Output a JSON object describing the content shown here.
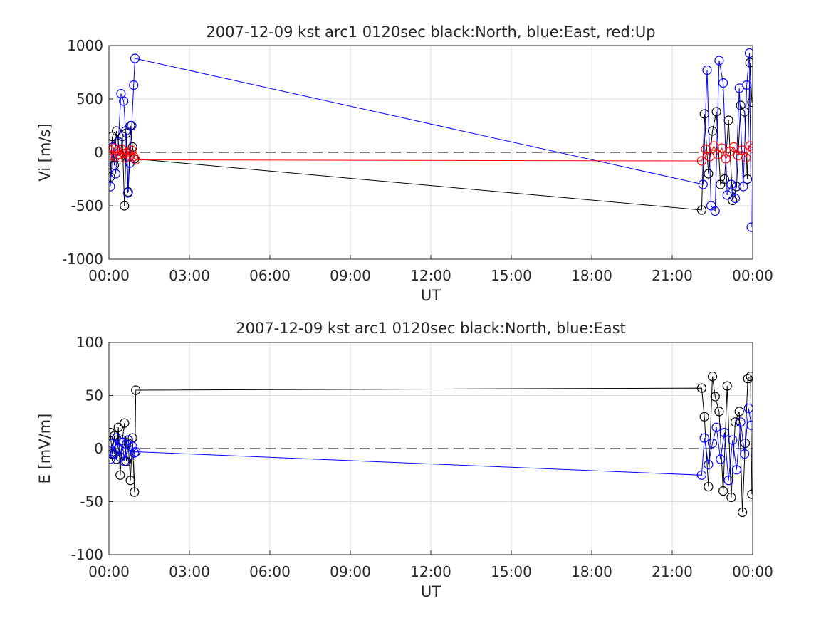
{
  "chart_data": [
    {
      "type": "scatter",
      "title": "2007-12-09 kst arc1 0120sec black:North, blue:East, red:Up",
      "xlabel": "UT",
      "ylabel": "Vi [m/s]",
      "xlim_hours": [
        0,
        24
      ],
      "ylim": [
        -1000,
        1000
      ],
      "x_ticks": [
        "00:00",
        "03:00",
        "06:00",
        "09:00",
        "12:00",
        "15:00",
        "18:00",
        "21:00",
        "00:00"
      ],
      "y_ticks": [
        "-1000",
        "-500",
        "0",
        "500",
        "1000"
      ],
      "grid": true,
      "zero_line": "dashed",
      "series": [
        {
          "name": "North",
          "color": "#000000",
          "x_hours": [
            0.05,
            0.12,
            0.2,
            0.28,
            0.35,
            0.42,
            0.5,
            0.58,
            0.65,
            0.72,
            0.8,
            0.88,
            0.95,
            22.1,
            22.2,
            22.35,
            22.5,
            22.65,
            22.8,
            22.95,
            23.1,
            23.25,
            23.4,
            23.55,
            23.7,
            23.8,
            23.9,
            23.97
          ],
          "values": [
            -230,
            150,
            -120,
            200,
            100,
            -50,
            150,
            -500,
            180,
            -370,
            250,
            50,
            -60,
            -540,
            360,
            -200,
            200,
            380,
            -300,
            -250,
            300,
            -450,
            -320,
            440,
            380,
            -250,
            840,
            470
          ]
        },
        {
          "name": "East",
          "color": "#0000ff",
          "x_hours": [
            0.05,
            0.15,
            0.25,
            0.35,
            0.45,
            0.55,
            0.62,
            0.7,
            0.78,
            0.85,
            0.92,
            0.97,
            22.15,
            22.3,
            22.45,
            22.6,
            22.75,
            22.9,
            23.05,
            23.2,
            23.35,
            23.5,
            23.65,
            23.78,
            23.88,
            23.95
          ],
          "values": [
            -320,
            50,
            -200,
            100,
            550,
            480,
            200,
            -380,
            -100,
            250,
            630,
            880,
            -300,
            770,
            -500,
            -550,
            860,
            650,
            -400,
            -300,
            -430,
            600,
            -320,
            630,
            930,
            -700
          ]
        },
        {
          "name": "Up",
          "color": "#ff0000",
          "x_hours": [
            0.03,
            0.1,
            0.18,
            0.25,
            0.32,
            0.4,
            0.48,
            0.55,
            0.62,
            0.7,
            0.78,
            0.85,
            0.92,
            1.0,
            22.1,
            22.25,
            22.4,
            22.55,
            22.7,
            22.85,
            23.0,
            23.15,
            23.3,
            23.45,
            23.6,
            23.75,
            23.9,
            24.0
          ],
          "values": [
            20,
            -30,
            40,
            -40,
            10,
            -20,
            30,
            -10,
            -50,
            0,
            -30,
            20,
            -40,
            -70,
            -80,
            30,
            -40,
            60,
            -20,
            40,
            -60,
            10,
            50,
            -30,
            20,
            -50,
            60,
            40
          ]
        }
      ]
    },
    {
      "type": "scatter",
      "title": "2007-12-09 kst arc1 0120sec black:North, blue:East",
      "xlabel": "UT",
      "ylabel": "E [mV/m]",
      "xlim_hours": [
        0,
        24
      ],
      "ylim": [
        -100,
        100
      ],
      "x_ticks": [
        "00:00",
        "03:00",
        "06:00",
        "09:00",
        "12:00",
        "15:00",
        "18:00",
        "21:00",
        "00:00"
      ],
      "y_ticks": [
        "-100",
        "-50",
        "0",
        "50",
        "100"
      ],
      "grid": true,
      "zero_line": "dashed",
      "series": [
        {
          "name": "North",
          "color": "#000000",
          "x_hours": [
            0.05,
            0.12,
            0.2,
            0.28,
            0.35,
            0.42,
            0.5,
            0.58,
            0.65,
            0.72,
            0.8,
            0.88,
            0.95,
            1.0,
            22.1,
            22.2,
            22.35,
            22.5,
            22.6,
            22.75,
            22.9,
            23.05,
            23.2,
            23.35,
            23.5,
            23.62,
            23.72,
            23.82,
            23.92,
            23.97
          ],
          "values": [
            15,
            -5,
            12,
            -10,
            20,
            -25,
            8,
            24,
            -12,
            5,
            -30,
            10,
            -41,
            55,
            57,
            30,
            -36,
            68,
            49,
            35,
            -40,
            59,
            -46,
            25,
            35,
            -60,
            5,
            66,
            68,
            -43
          ]
        },
        {
          "name": "East",
          "color": "#0000ff",
          "x_hours": [
            0.05,
            0.12,
            0.2,
            0.28,
            0.35,
            0.42,
            0.5,
            0.58,
            0.65,
            0.72,
            0.8,
            0.88,
            0.95,
            1.0,
            22.1,
            22.2,
            22.35,
            22.5,
            22.65,
            22.8,
            22.95,
            23.1,
            23.25,
            23.4,
            23.55,
            23.7,
            23.85,
            23.95
          ],
          "values": [
            -10,
            5,
            -5,
            10,
            0,
            -8,
            6,
            -12,
            4,
            8,
            -6,
            2,
            -4,
            -3,
            -25,
            10,
            -15,
            5,
            20,
            -10,
            15,
            -30,
            8,
            -20,
            25,
            -5,
            38,
            22
          ]
        }
      ]
    }
  ]
}
